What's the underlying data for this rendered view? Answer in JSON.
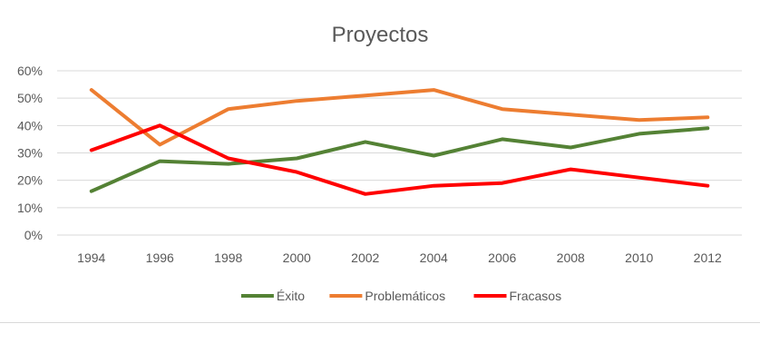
{
  "chart_data": {
    "type": "line",
    "title": "Proyectos",
    "xlabel": "",
    "ylabel": "",
    "categories": [
      "1994",
      "1996",
      "1998",
      "2000",
      "2002",
      "2004",
      "2006",
      "2008",
      "2010",
      "2012"
    ],
    "y_ticks": [
      "0%",
      "10%",
      "20%",
      "30%",
      "40%",
      "50%",
      "60%"
    ],
    "ylim": [
      0,
      60
    ],
    "grid": true,
    "legend_position": "bottom",
    "series": [
      {
        "name": "Éxito",
        "color": "#548235",
        "values": [
          16,
          27,
          26,
          28,
          34,
          29,
          35,
          32,
          37,
          39
        ]
      },
      {
        "name": "Problemáticos",
        "color": "#ed7d31",
        "values": [
          53,
          33,
          46,
          49,
          51,
          53,
          46,
          44,
          42,
          43
        ]
      },
      {
        "name": "Fracasos",
        "color": "#ff0000",
        "values": [
          31,
          40,
          28,
          23,
          15,
          18,
          19,
          24,
          21,
          18
        ]
      }
    ]
  }
}
